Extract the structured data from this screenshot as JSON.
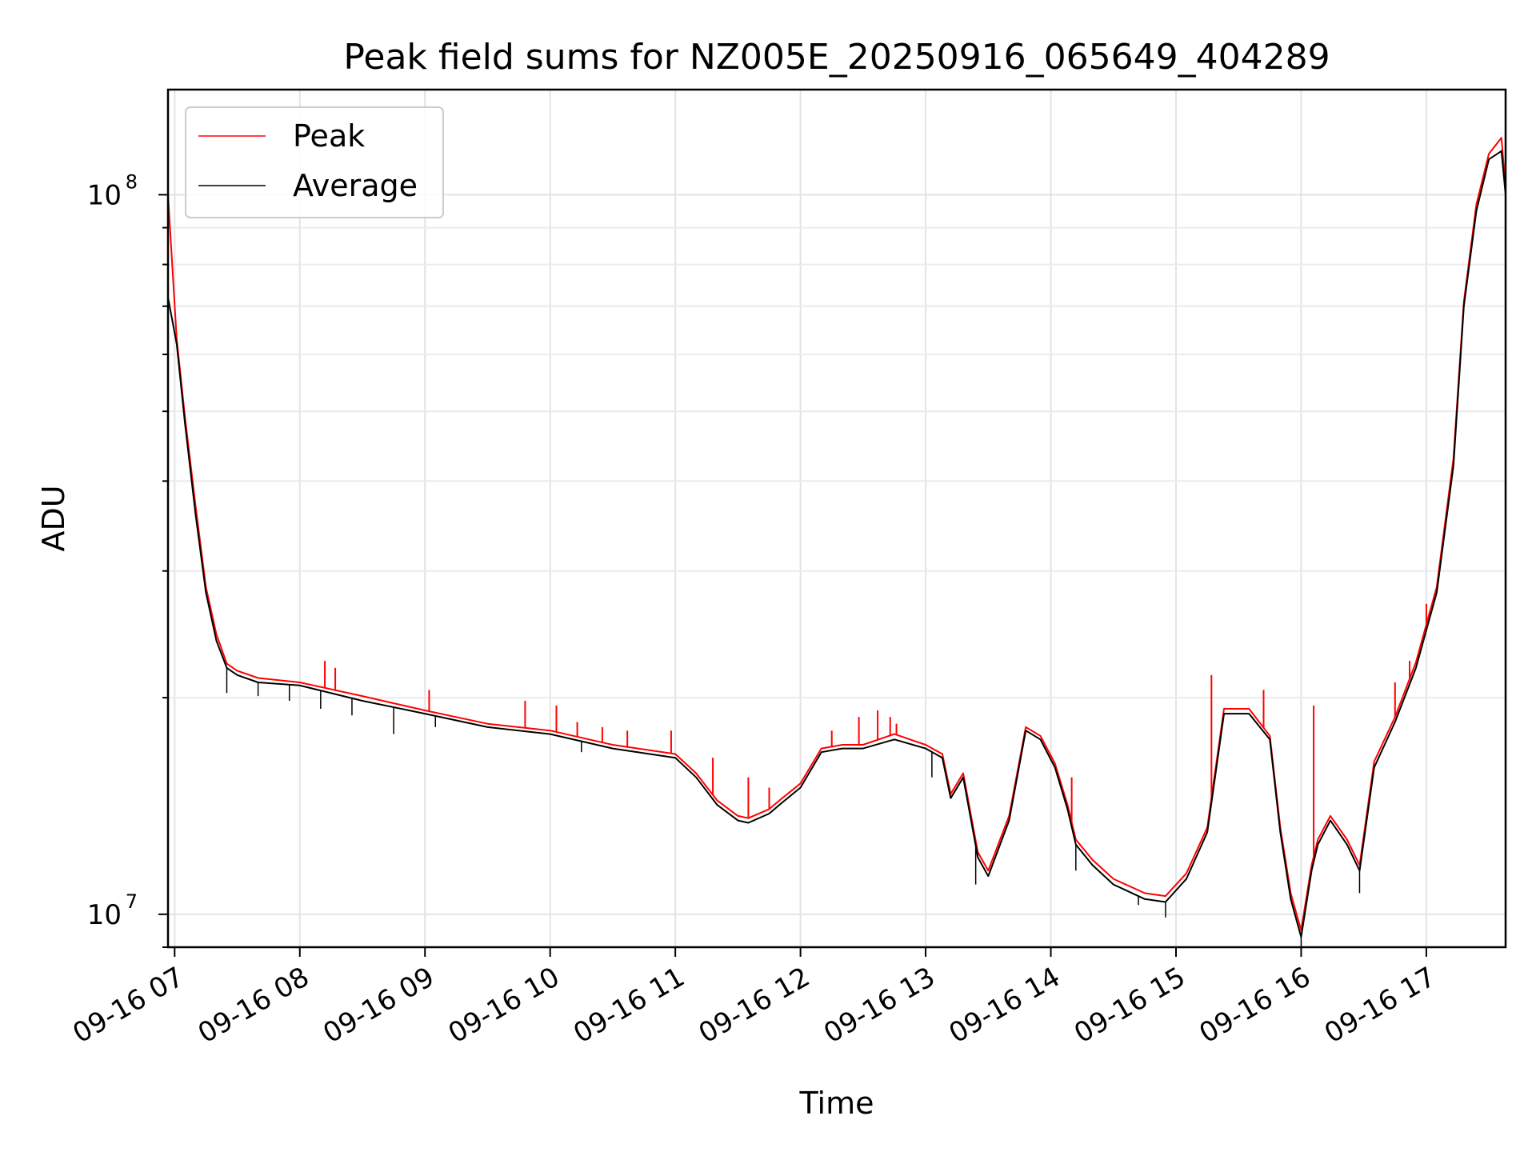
{
  "chart_data": {
    "type": "line",
    "title": "Peak field sums for NZ005E_20250916_065649_404289",
    "xlabel": "Time",
    "ylabel": "ADU",
    "yscale": "log",
    "ylim": [
      9000000,
      140000000
    ],
    "xlim": [
      "2025-09-16 06:56:49",
      "2025-09-16 17:38:00"
    ],
    "x_ticks": [
      {
        "t": "2025-09-16 07:00",
        "label": "09-16 07"
      },
      {
        "t": "2025-09-16 08:00",
        "label": "09-16 08"
      },
      {
        "t": "2025-09-16 09:00",
        "label": "09-16 09"
      },
      {
        "t": "2025-09-16 10:00",
        "label": "09-16 10"
      },
      {
        "t": "2025-09-16 11:00",
        "label": "09-16 11"
      },
      {
        "t": "2025-09-16 12:00",
        "label": "09-16 12"
      },
      {
        "t": "2025-09-16 13:00",
        "label": "09-16 13"
      },
      {
        "t": "2025-09-16 14:00",
        "label": "09-16 14"
      },
      {
        "t": "2025-09-16 15:00",
        "label": "09-16 15"
      },
      {
        "t": "2025-09-16 16:00",
        "label": "09-16 16"
      },
      {
        "t": "2025-09-16 17:00",
        "label": "09-16 17"
      }
    ],
    "y_ticks": [
      {
        "value": 10000000,
        "mantissa": "10",
        "exponent": "7"
      },
      {
        "value": 100000000,
        "mantissa": "10",
        "exponent": "8"
      }
    ],
    "grid": true,
    "legend_position": "top-left",
    "colors": {
      "Peak": "#ff0000",
      "Average": "#000000"
    },
    "series": [
      {
        "name": "Average",
        "x": [
          "2025-09-16 06:56:49",
          "2025-09-16 07:01",
          "2025-09-16 07:05",
          "2025-09-16 07:10",
          "2025-09-16 07:15",
          "2025-09-16 07:20",
          "2025-09-16 07:25",
          "2025-09-16 07:30",
          "2025-09-16 07:40",
          "2025-09-16 08:00",
          "2025-09-16 08:30",
          "2025-09-16 09:00",
          "2025-09-16 09:30",
          "2025-09-16 10:00",
          "2025-09-16 10:30",
          "2025-09-16 11:00",
          "2025-09-16 11:10",
          "2025-09-16 11:20",
          "2025-09-16 11:30",
          "2025-09-16 11:35",
          "2025-09-16 11:45",
          "2025-09-16 11:50",
          "2025-09-16 12:00",
          "2025-09-16 12:10",
          "2025-09-16 12:20",
          "2025-09-16 12:30",
          "2025-09-16 12:45",
          "2025-09-16 13:00",
          "2025-09-16 13:08",
          "2025-09-16 13:12",
          "2025-09-16 13:18",
          "2025-09-16 13:25",
          "2025-09-16 13:30",
          "2025-09-16 13:40",
          "2025-09-16 13:48",
          "2025-09-16 13:55",
          "2025-09-16 14:02",
          "2025-09-16 14:08",
          "2025-09-16 14:12",
          "2025-09-16 14:20",
          "2025-09-16 14:30",
          "2025-09-16 14:45",
          "2025-09-16 14:55",
          "2025-09-16 15:05",
          "2025-09-16 15:15",
          "2025-09-16 15:23",
          "2025-09-16 15:35",
          "2025-09-16 15:45",
          "2025-09-16 15:50",
          "2025-09-16 15:55",
          "2025-09-16 16:00",
          "2025-09-16 16:05",
          "2025-09-16 16:08",
          "2025-09-16 16:14",
          "2025-09-16 16:22",
          "2025-09-16 16:28",
          "2025-09-16 16:35",
          "2025-09-16 16:45",
          "2025-09-16 16:55",
          "2025-09-16 17:05",
          "2025-09-16 17:13",
          "2025-09-16 17:18",
          "2025-09-16 17:24",
          "2025-09-16 17:30",
          "2025-09-16 17:36",
          "2025-09-16 17:38"
        ],
        "y": [
          72000000,
          62000000,
          48000000,
          36000000,
          28000000,
          24000000,
          22000000,
          21500000,
          21000000,
          20800000,
          19800000,
          19000000,
          18200000,
          17800000,
          17000000,
          16500000,
          15500000,
          14200000,
          13500000,
          13400000,
          13800000,
          14200000,
          15000000,
          16800000,
          17000000,
          17000000,
          17500000,
          17000000,
          16500000,
          14500000,
          15500000,
          12000000,
          11300000,
          13500000,
          18000000,
          17500000,
          16000000,
          14000000,
          12500000,
          11700000,
          11000000,
          10500000,
          10400000,
          11200000,
          13000000,
          19000000,
          19000000,
          17500000,
          13000000,
          10500000,
          9300000,
          11500000,
          12500000,
          13500000,
          12500000,
          11500000,
          16000000,
          18500000,
          22000000,
          28000000,
          42000000,
          70000000,
          95000000,
          112000000,
          115000000,
          100000000
        ]
      },
      {
        "name": "Peak",
        "x": [
          "2025-09-16 06:56:49",
          "2025-09-16 07:01",
          "2025-09-16 07:05",
          "2025-09-16 07:10",
          "2025-09-16 07:15",
          "2025-09-16 07:20",
          "2025-09-16 07:25",
          "2025-09-16 07:30",
          "2025-09-16 07:40",
          "2025-09-16 08:00",
          "2025-09-16 08:30",
          "2025-09-16 09:00",
          "2025-09-16 09:30",
          "2025-09-16 10:00",
          "2025-09-16 10:30",
          "2025-09-16 11:00",
          "2025-09-16 11:10",
          "2025-09-16 11:20",
          "2025-09-16 11:30",
          "2025-09-16 11:35",
          "2025-09-16 11:45",
          "2025-09-16 11:50",
          "2025-09-16 12:00",
          "2025-09-16 12:10",
          "2025-09-16 12:20",
          "2025-09-16 12:30",
          "2025-09-16 12:45",
          "2025-09-16 13:00",
          "2025-09-16 13:08",
          "2025-09-16 13:12",
          "2025-09-16 13:18",
          "2025-09-16 13:25",
          "2025-09-16 13:30",
          "2025-09-16 13:40",
          "2025-09-16 13:48",
          "2025-09-16 13:55",
          "2025-09-16 14:02",
          "2025-09-16 14:08",
          "2025-09-16 14:12",
          "2025-09-16 14:20",
          "2025-09-16 14:30",
          "2025-09-16 14:45",
          "2025-09-16 14:55",
          "2025-09-16 15:05",
          "2025-09-16 15:15",
          "2025-09-16 15:23",
          "2025-09-16 15:35",
          "2025-09-16 15:45",
          "2025-09-16 15:50",
          "2025-09-16 15:55",
          "2025-09-16 16:00",
          "2025-09-16 16:05",
          "2025-09-16 16:08",
          "2025-09-16 16:14",
          "2025-09-16 16:22",
          "2025-09-16 16:28",
          "2025-09-16 16:35",
          "2025-09-16 16:45",
          "2025-09-16 16:55",
          "2025-09-16 17:05",
          "2025-09-16 17:13",
          "2025-09-16 17:18",
          "2025-09-16 17:24",
          "2025-09-16 17:30",
          "2025-09-16 17:36",
          "2025-09-16 17:38"
        ],
        "y": [
          100000000,
          63000000,
          49000000,
          37000000,
          28500000,
          24500000,
          22300000,
          21800000,
          21300000,
          21000000,
          20100000,
          19200000,
          18400000,
          18000000,
          17200000,
          16700000,
          15700000,
          14400000,
          13700000,
          13600000,
          14000000,
          14400000,
          15200000,
          17000000,
          17200000,
          17200000,
          17800000,
          17200000,
          16700000,
          14700000,
          15700000,
          12200000,
          11500000,
          13700000,
          18200000,
          17700000,
          16200000,
          14200000,
          12700000,
          11900000,
          11200000,
          10700000,
          10600000,
          11400000,
          13200000,
          19300000,
          19300000,
          17700000,
          13200000,
          10700000,
          9500000,
          11700000,
          12700000,
          13700000,
          12700000,
          11700000,
          16300000,
          18800000,
          22400000,
          28500000,
          43000000,
          71000000,
          97000000,
          114000000,
          120000000,
          102000000
        ]
      }
    ],
    "peak_spikes": [
      {
        "t": "2025-09-16 08:12",
        "value": 22500000
      },
      {
        "t": "2025-09-16 08:17",
        "value": 22000000
      },
      {
        "t": "2025-09-16 09:02",
        "value": 20500000
      },
      {
        "t": "2025-09-16 09:48",
        "value": 19800000
      },
      {
        "t": "2025-09-16 10:03",
        "value": 19500000
      },
      {
        "t": "2025-09-16 10:13",
        "value": 18500000
      },
      {
        "t": "2025-09-16 10:25",
        "value": 18200000
      },
      {
        "t": "2025-09-16 10:37",
        "value": 18000000
      },
      {
        "t": "2025-09-16 10:58",
        "value": 18000000
      },
      {
        "t": "2025-09-16 11:18",
        "value": 16500000
      },
      {
        "t": "2025-09-16 11:35",
        "value": 15500000
      },
      {
        "t": "2025-09-16 11:45",
        "value": 15000000
      },
      {
        "t": "2025-09-16 12:15",
        "value": 18000000
      },
      {
        "t": "2025-09-16 12:28",
        "value": 18800000
      },
      {
        "t": "2025-09-16 12:37",
        "value": 19200000
      },
      {
        "t": "2025-09-16 12:43",
        "value": 18800000
      },
      {
        "t": "2025-09-16 12:46",
        "value": 18400000
      },
      {
        "t": "2025-09-16 14:10",
        "value": 15500000
      },
      {
        "t": "2025-09-16 15:17",
        "value": 21500000
      },
      {
        "t": "2025-09-16 15:42",
        "value": 20500000
      },
      {
        "t": "2025-09-16 16:06",
        "value": 19500000
      },
      {
        "t": "2025-09-16 16:45",
        "value": 21000000
      },
      {
        "t": "2025-09-16 16:52",
        "value": 22500000
      },
      {
        "t": "2025-09-16 17:00",
        "value": 27000000
      }
    ],
    "average_dips": [
      {
        "t": "2025-09-16 07:25",
        "value": 20300000
      },
      {
        "t": "2025-09-16 07:40",
        "value": 20100000
      },
      {
        "t": "2025-09-16 07:55",
        "value": 19800000
      },
      {
        "t": "2025-09-16 08:10",
        "value": 19300000
      },
      {
        "t": "2025-09-16 08:25",
        "value": 18900000
      },
      {
        "t": "2025-09-16 08:45",
        "value": 17800000
      },
      {
        "t": "2025-09-16 09:05",
        "value": 18200000
      },
      {
        "t": "2025-09-16 10:15",
        "value": 16800000
      },
      {
        "t": "2025-09-16 13:03",
        "value": 15500000
      },
      {
        "t": "2025-09-16 13:24",
        "value": 11000000
      },
      {
        "t": "2025-09-16 14:12",
        "value": 11500000
      },
      {
        "t": "2025-09-16 14:42",
        "value": 10300000
      },
      {
        "t": "2025-09-16 14:55",
        "value": 9900000
      },
      {
        "t": "2025-09-16 16:00",
        "value": 9000000
      },
      {
        "t": "2025-09-16 16:28",
        "value": 10700000
      }
    ]
  }
}
